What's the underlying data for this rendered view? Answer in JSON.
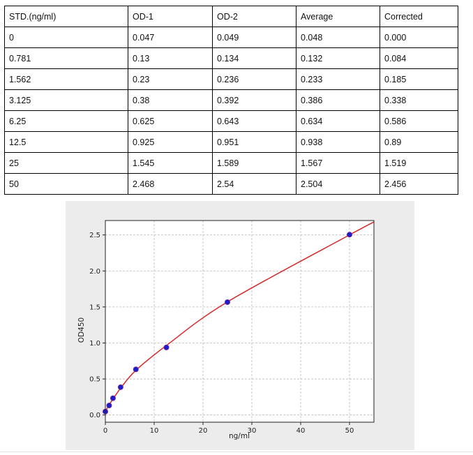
{
  "table": {
    "headers": [
      "STD.(ng/ml)",
      "OD-1",
      "OD-2",
      "Average",
      "Corrected"
    ],
    "rows": [
      [
        "0",
        "0.047",
        "0.049",
        "0.048",
        "0.000"
      ],
      [
        "0.781",
        "0.13",
        "0.134",
        "0.132",
        "0.084"
      ],
      [
        "1.562",
        "0.23",
        "0.236",
        "0.233",
        "0.185"
      ],
      [
        "3.125",
        "0.38",
        "0.392",
        "0.386",
        "0.338"
      ],
      [
        "6.25",
        "0.625",
        "0.643",
        "0.634",
        "0.586"
      ],
      [
        "12.5",
        "0.925",
        "0.951",
        "0.938",
        "0.89"
      ],
      [
        "25",
        "1.545",
        "1.589",
        "1.567",
        "1.519"
      ],
      [
        "50",
        "2.468",
        "2.54",
        "2.504",
        "2.456"
      ]
    ]
  },
  "chart_data": {
    "type": "scatter",
    "title": "",
    "xlabel": "ng/ml",
    "ylabel": "OD450",
    "xlim": [
      0,
      55
    ],
    "ylim": [
      -0.1,
      2.7
    ],
    "xticks": [
      0,
      10,
      20,
      30,
      40,
      50
    ],
    "xtick_labels": [
      "0",
      "10",
      "20",
      "30",
      "40",
      "50"
    ],
    "yticks": [
      0.0,
      0.5,
      1.0,
      1.5,
      2.0,
      2.5
    ],
    "ytick_labels": [
      "0.0",
      "0.5",
      "1.0",
      "1.5",
      "2.0",
      "2.5"
    ],
    "grid": true,
    "points": {
      "x": [
        0,
        0.781,
        1.562,
        3.125,
        6.25,
        12.5,
        25,
        50
      ],
      "y": [
        0.048,
        0.132,
        0.233,
        0.386,
        0.634,
        0.938,
        1.567,
        2.504
      ]
    },
    "fit_curve": {
      "x": [
        0,
        0.781,
        1.562,
        3.125,
        6.25,
        12.5,
        25,
        50,
        55
      ],
      "y": [
        0.05,
        0.142,
        0.22,
        0.372,
        0.62,
        0.965,
        1.57,
        2.5,
        2.68
      ]
    },
    "colors": {
      "points": "#1c1ccc",
      "points_edge": "#7a2a9a",
      "curve": "#d62728",
      "grid": "#b9b9b9",
      "panel": "#ececec",
      "plot_bg": "#ffffff"
    }
  }
}
